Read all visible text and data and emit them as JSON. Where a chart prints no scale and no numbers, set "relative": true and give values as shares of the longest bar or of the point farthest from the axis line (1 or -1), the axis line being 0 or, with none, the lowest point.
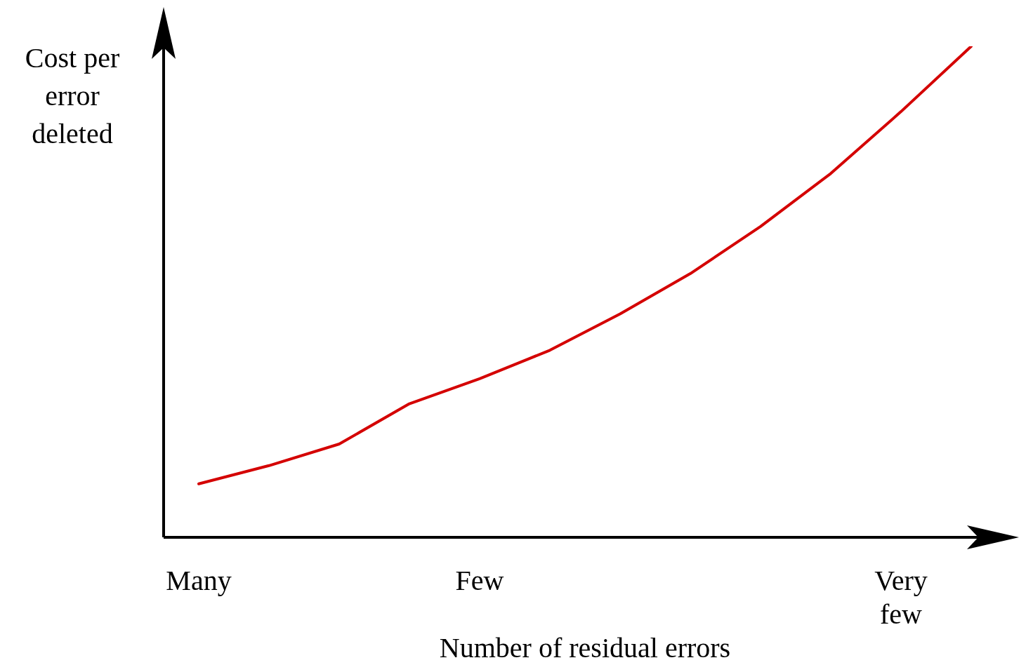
{
  "chart_data": {
    "type": "line",
    "relative": true,
    "xlabel": "Number of residual errors",
    "ylabel": "Cost per error deleted",
    "categories": [
      "Many",
      null,
      null,
      null,
      "Few",
      null,
      null,
      null,
      null,
      null,
      "Very few",
      null
    ],
    "series": [
      {
        "color": "#d40000",
        "values": [
          0.109,
          0.146,
          0.19,
          0.272,
          0.323,
          0.381,
          0.455,
          0.537,
          0.633,
          0.741,
          0.867,
          1
        ]
      }
    ],
    "grid": false,
    "legend": false,
    "marker": "none",
    "line_style": "solid"
  }
}
